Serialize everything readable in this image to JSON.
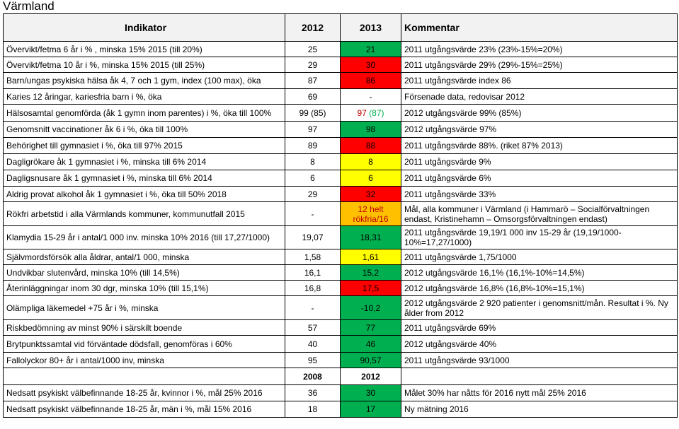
{
  "title": "Värmland",
  "header": {
    "indikator": "Indikator",
    "y2012": "2012",
    "y2013": "2013",
    "kommentar": "Kommentar"
  },
  "rows": [
    {
      "indikator": "Övervikt/fetma 6 år i % , minska 15% 2015 (till 20%)",
      "v2012": "25",
      "v2013": "21",
      "status": "green",
      "kommentar": "2011 utgångsvärde 23% (23%-15%=20%)"
    },
    {
      "indikator": "Övervikt/fetma 10 år i %, minska 15% 2015 (till 25%)",
      "v2012": "29",
      "v2013": "30",
      "status": "red",
      "kommentar": "2011 utgångsvärde 29% (29%-15%=25%)"
    },
    {
      "indikator": "Barn/ungas psykiska hälsa åk 4, 7 och 1 gym, index (100 max), öka",
      "v2012": "87",
      "v2013": "86",
      "status": "red",
      "kommentar": "2011 utgångsvärde index 86"
    },
    {
      "indikator": "Karies 12 åringar, kariesfria barn i %, öka",
      "v2012": "69",
      "v2013": "-",
      "status": "none",
      "kommentar": "Försenade data, redovisar 2012"
    },
    {
      "indikator": "Hälsosamtal genomförda (åk 1 gymn inom parentes) i %, öka till 100%",
      "v2012": "99 (85)",
      "v2013a": "97",
      "v2013b": "(87)",
      "status": "split",
      "kommentar": "2012 utgångsvärde 99% (85%)"
    },
    {
      "indikator": "Genomsnitt vaccinationer åk 6 i %, öka till 100%",
      "v2012": "97",
      "v2013": "98",
      "status": "green",
      "kommentar": "2012 utgångsvärde 97%"
    },
    {
      "indikator": "Behörighet till gymnasiet i %, öka till 97% 2015",
      "v2012": "89",
      "v2013": "88",
      "status": "red",
      "kommentar": "2011 utgångsvärde 88%. (riket 87% 2013)"
    },
    {
      "indikator": "Dagligrökare åk 1 gymnasiet i %, minska till 6% 2014",
      "v2012": "8",
      "v2013": "8",
      "status": "yellow",
      "kommentar": "2011 utgångsvärde 9%"
    },
    {
      "indikator": "Dagligsnusare åk 1 gymnasiet i %, minska till 6% 2014",
      "v2012": "6",
      "v2013": "6",
      "status": "yellow",
      "kommentar": "2011 utgångsvärde 6%"
    },
    {
      "indikator": "Aldrig provat alkohol åk 1 gymnasiet i %, öka till 50% 2018",
      "v2012": "29",
      "v2013": "32",
      "status": "red",
      "kommentar": "2011 utgångsvärde 33%"
    },
    {
      "indikator": "Rökfri arbetstid i alla Värmlands kommuner, kommunutfall 2015",
      "v2012": "-",
      "v2013l1": "12 helt",
      "v2013l2": "rökfria/16",
      "status": "amber",
      "kommentar": "Mål, alla kommuner i Värmland (i Hammarö – Socialförvaltningen endast, Kristinehamn – Omsorgsförvaltningen endast)",
      "tall": true
    },
    {
      "indikator": "Klamydia 15-29 år i antal/1 000 inv. minska 10% 2016 (till 17,27/1000)",
      "v2012": "19,07",
      "v2013": "18,31",
      "status": "green",
      "kommentar": "2011 utgångsvärde 19,19/1 000 inv 15-29 år (19,19/1000-10%=17,27/1000)",
      "tall": true
    },
    {
      "indikator": "Självmordsförsök alla åldrar, antal/1 000, minska",
      "v2012": "1,58",
      "v2013": "1,61",
      "status": "yellow",
      "kommentar": "2011 utgångsvärde 1,75/1000"
    },
    {
      "indikator": "Undvikbar slutenvård, minska 10% (till 14,5%)",
      "v2012": "16,1",
      "v2013": "15,2",
      "status": "green",
      "kommentar": "2012 utgångsvärde 16,1% (16,1%-10%=14,5%)"
    },
    {
      "indikator": "Återinläggningar inom 30 dgr, minska 10% (till 15,1%)",
      "v2012": "16,8",
      "v2013": "17,5",
      "status": "red",
      "kommentar": "2012 utgångsvärde 16,8% (16,8%-10%=15,1%)"
    },
    {
      "indikator": "Olämpliga läkemedel +75 år i %, minska",
      "v2012": "-",
      "v2013": "-10,2",
      "status": "green",
      "kommentar": "2012 utgångsvärde 2 920 patienter i genomsnitt/mån. Resultat i %. Ny ålder from 2012",
      "tall": true
    },
    {
      "indikator": "Riskbedömning av minst 90% i särskilt boende",
      "v2012": "57",
      "v2013": "77",
      "status": "green",
      "kommentar": "2011 utgångsvärde 69%"
    },
    {
      "indikator": "Brytpunktssamtal vid förväntade dödsfall, genomföras i 60%",
      "v2012": "40",
      "v2013": "46",
      "status": "green",
      "kommentar": "2012 utgångsvärde 40%"
    },
    {
      "indikator": "Fallolyckor 80+ år i antal/1000 inv, minska",
      "v2012": "95",
      "v2013": "90,57",
      "status": "green",
      "kommentar": "2011 utgångsvärde 93/1000"
    }
  ],
  "header2": {
    "y2008": "2008",
    "y2012": "2012"
  },
  "rows2": [
    {
      "indikator": "Nedsatt psykiskt välbefinnande 18-25 år, kvinnor i %, mål 25% 2016",
      "v2008": "36",
      "v2012": "30",
      "status": "green",
      "kommentar": "Målet 30% har nåtts för 2016 nytt mål 25% 2016"
    },
    {
      "indikator": "Nedsatt psykiskt välbefinnande 18-25 år, män i %, mål 15% 2016",
      "v2008": "18",
      "v2012": "17",
      "status": "green",
      "kommentar": "Ny mätning 2016"
    }
  ],
  "colors": {
    "green": "#00b050",
    "red": "#ff0000",
    "yellow": "#ffff00",
    "amber": "#ffc000",
    "header_bg": "#f2f2f2"
  }
}
